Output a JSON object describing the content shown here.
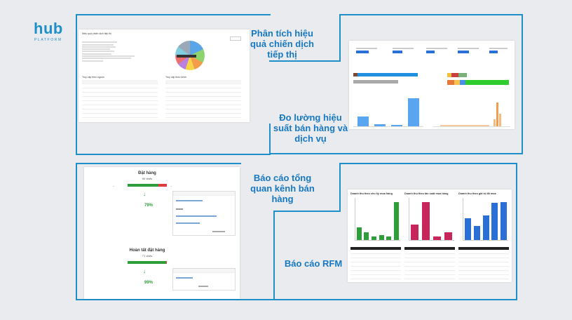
{
  "logo": {
    "brand": "hub",
    "tagline": "PLATFORM"
  },
  "sections": [
    {
      "title": "Phân tích hiệu quả chiến dịch tiếp thị"
    },
    {
      "title": "Đo lường hiệu suất bán hàng và dịch vụ"
    },
    {
      "title": "Báo cáo tổng quan kênh bán hàng"
    },
    {
      "title": "Báo cáo RFM"
    }
  ],
  "funnel": {
    "top": {
      "title": "Đặt hàng",
      "visits": "90 visits",
      "progress": 0.79,
      "percent": "79%"
    },
    "bottom": {
      "title": "Hoàn tất đặt hàng",
      "visits": "71 visits",
      "progress": 0.99,
      "percent": "99%"
    }
  },
  "rfm": {
    "charts": [
      {
        "title": "Doanh thu theo chu kỳ mua hàng",
        "color": "#2e9e3a",
        "values": [
          2,
          1.2,
          0.5,
          0.8,
          0.6,
          6
        ]
      },
      {
        "title": "Doanh thu theo tần suất mua hàng",
        "color": "#c7265a",
        "values": [
          1.2,
          3,
          0.3,
          0.6
        ]
      },
      {
        "title": "Doanh thu theo giá trị đã mua",
        "color": "#2a6fd6",
        "values": [
          2.5,
          1.6,
          2.8,
          4.2,
          4.3
        ]
      }
    ]
  },
  "colors": {
    "accent": "#1f8fc9",
    "title": "#1778c2",
    "funnel_green": "#2e9e3a",
    "funnel_red": "#e23b3b"
  }
}
